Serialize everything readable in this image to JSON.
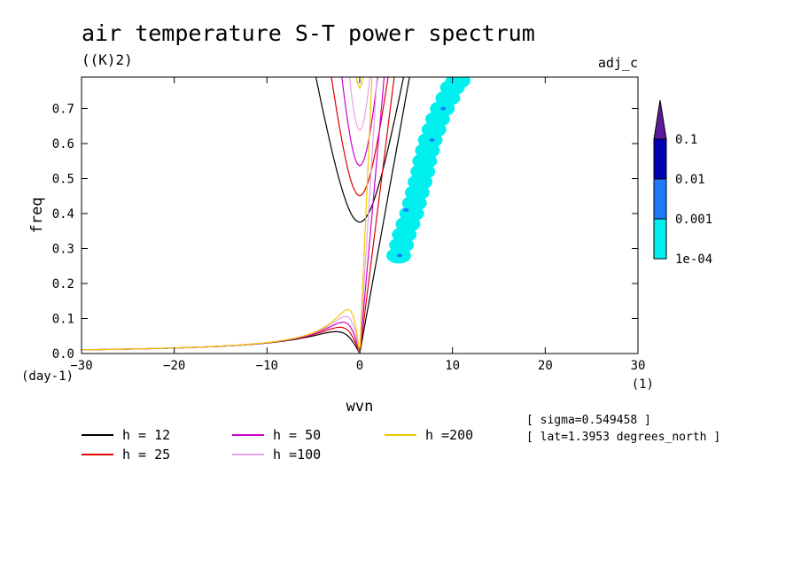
{
  "chart_data": {
    "type": "line",
    "title": "air temperature S-T power spectrum",
    "units": "((K)2)",
    "tag": "adj_c",
    "xlabel": "wvn",
    "xunit": "(1)",
    "ylabel": "freq",
    "yunit": "(day-1)",
    "xlim": [
      -30,
      30
    ],
    "ylim": [
      0,
      0.79
    ],
    "xticks": [
      -30,
      -20,
      -10,
      0,
      10,
      20,
      30
    ],
    "yticks": [
      "0.0",
      "0.1",
      "0.2",
      "0.3",
      "0.4",
      "0.5",
      "0.6",
      "0.7"
    ],
    "grid": false,
    "info": [
      "[ sigma=0.549458 ]",
      "[ lat=1.3953 degrees_north ]"
    ],
    "series": [
      {
        "name": "h = 12",
        "color": "#000000",
        "h": 12
      },
      {
        "name": "h = 25",
        "color": "#e00000",
        "h": 25
      },
      {
        "name": "h = 50",
        "color": "#d000d0",
        "h": 50
      },
      {
        "name": "h =100",
        "color": "#e6a0e6",
        "h": 100
      },
      {
        "name": "h =200",
        "color": "#f0c800",
        "h": 200
      }
    ],
    "colorbar": {
      "labels": [
        "0.1",
        "0.01",
        "0.001",
        "1e-04"
      ],
      "colors": [
        "#5a1a9a",
        "#0000b4",
        "#1e78ff",
        "#00f0f0"
      ]
    },
    "power_region": {
      "description_free": true,
      "centers": [
        [
          4.2,
          0.28
        ],
        [
          4.5,
          0.31
        ],
        [
          4.8,
          0.34
        ],
        [
          5.2,
          0.37
        ],
        [
          5.6,
          0.4
        ],
        [
          5.9,
          0.43
        ],
        [
          6.2,
          0.46
        ],
        [
          6.5,
          0.49
        ],
        [
          6.8,
          0.52
        ],
        [
          7.0,
          0.55
        ],
        [
          7.3,
          0.58
        ],
        [
          7.6,
          0.61
        ],
        [
          8.0,
          0.64
        ],
        [
          8.4,
          0.67
        ],
        [
          8.9,
          0.7
        ],
        [
          9.5,
          0.73
        ],
        [
          10.0,
          0.76
        ],
        [
          10.6,
          0.78
        ]
      ],
      "dark_spots": [
        [
          4.3,
          0.28
        ],
        [
          5.0,
          0.41
        ],
        [
          7.8,
          0.61
        ],
        [
          9.0,
          0.7
        ]
      ]
    }
  },
  "legend_items": [
    "h = 12",
    "h = 25",
    "h = 50",
    "h =100",
    "h =200"
  ]
}
